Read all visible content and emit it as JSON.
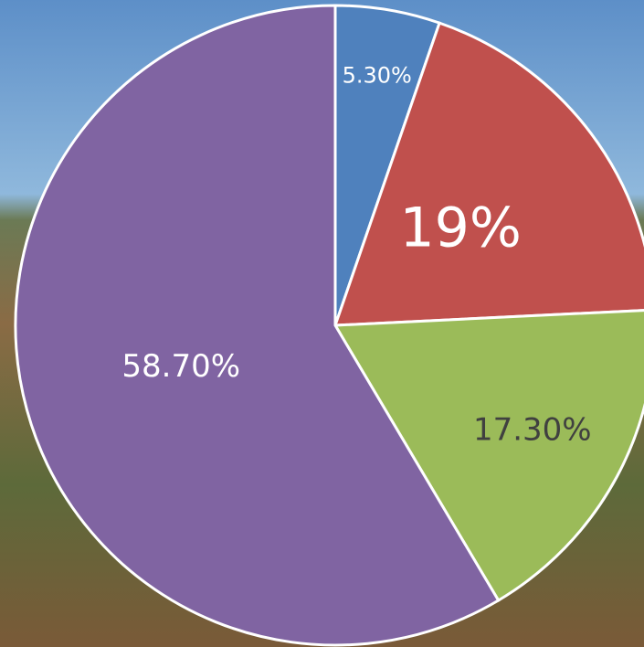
{
  "chart_data": {
    "type": "pie",
    "values": [
      5.3,
      19,
      17.3,
      58.7
    ],
    "value_labels": [
      "5.30%",
      "19%",
      "17.30%",
      "58.70%"
    ],
    "colors": [
      "#4f81bd",
      "#c0504d",
      "#9bbb59",
      "#8064a2"
    ]
  }
}
